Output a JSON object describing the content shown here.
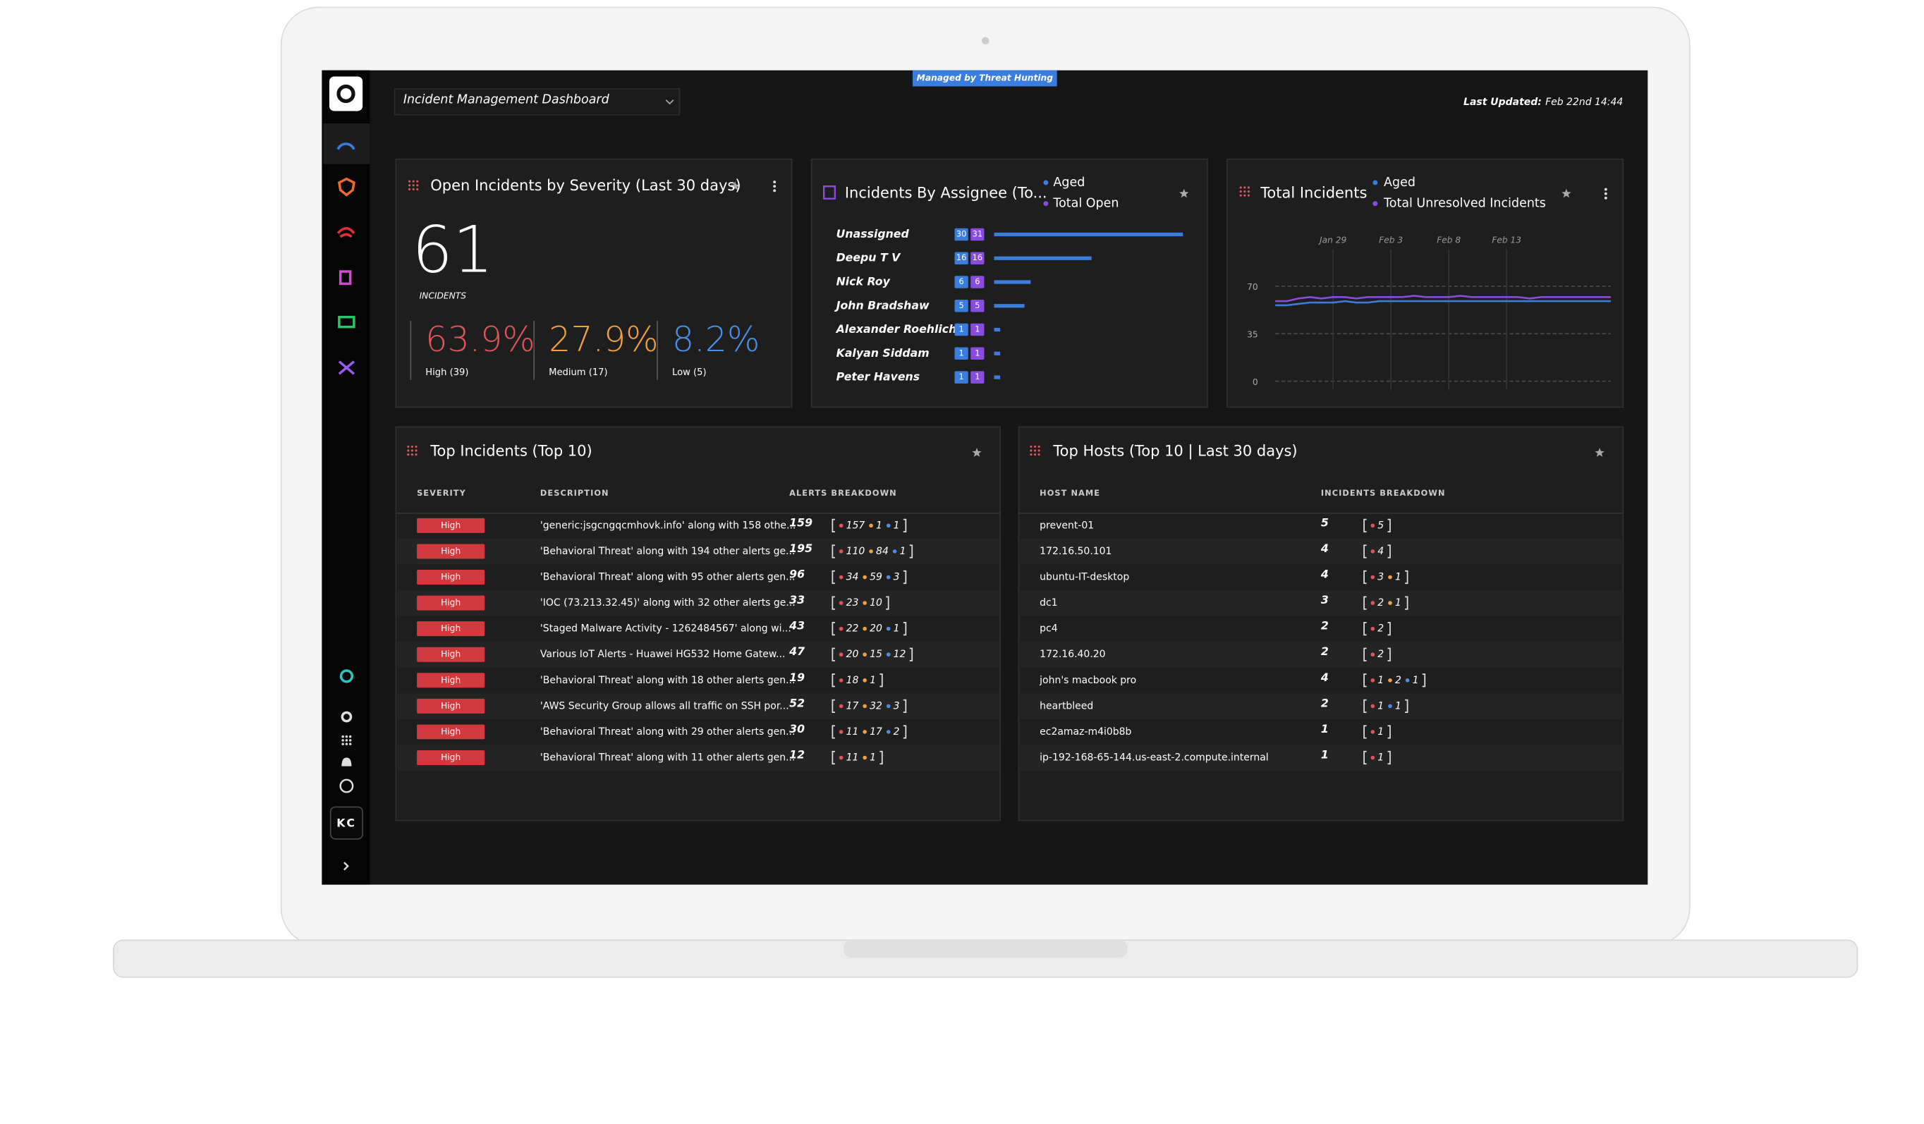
{
  "header": {
    "badge": "Managed by Threat Hunting",
    "dashboard": "Incident Management Dashboard",
    "last_updated_label": "Last Updated:",
    "last_updated": "Feb 22nd 14:44"
  },
  "sidebar": {
    "user": "KC"
  },
  "severity": {
    "title": "Open Incidents by Severity (Last 30 days)",
    "total": 61,
    "total_label": "INCIDENTS",
    "items": [
      {
        "percent": "63.9%",
        "label": "High (39)",
        "color": "#e0555a"
      },
      {
        "percent": "27.9%",
        "label": "Medium (17)",
        "color": "#f0a240"
      },
      {
        "percent": "8.2%",
        "label": "Low (5)",
        "color": "#4a8fe7"
      }
    ]
  },
  "assignees": {
    "title": "Incidents By Assignee (To...",
    "legend": [
      {
        "name": "Aged",
        "color": "#3b7ddd"
      },
      {
        "name": "Total Open",
        "color": "#8a4be0"
      }
    ],
    "rows": [
      {
        "name": "Unassigned",
        "aged": 30,
        "open": 31
      },
      {
        "name": "Deepu T V",
        "aged": 16,
        "open": 16
      },
      {
        "name": "Nick Roy",
        "aged": 6,
        "open": 6
      },
      {
        "name": "John Bradshaw",
        "aged": 5,
        "open": 5
      },
      {
        "name": "Alexander Roehlich",
        "aged": 1,
        "open": 1
      },
      {
        "name": "Kalyan Siddam",
        "aged": 1,
        "open": 1
      },
      {
        "name": "Peter Havens",
        "aged": 1,
        "open": 1
      }
    ]
  },
  "total_incidents": {
    "chart_data": {
      "type": "line",
      "title": "Total Incidents",
      "categories": [
        null,
        null,
        null,
        null,
        null,
        "Jan 29",
        null,
        null,
        null,
        null,
        "Feb 3",
        null,
        null,
        null,
        null,
        "Feb 8",
        null,
        null,
        null,
        null,
        "Feb 13",
        null,
        null,
        null,
        null,
        null,
        null,
        null,
        null,
        null
      ],
      "series": [
        {
          "name": "Aged",
          "color": "#3b7ddd",
          "values": [
            56,
            56,
            57,
            58,
            58,
            58,
            59,
            58,
            58,
            59,
            59,
            59,
            59,
            59,
            59,
            59,
            59,
            59,
            59,
            59,
            59,
            59,
            59,
            59,
            59,
            59,
            59,
            59,
            59,
            59
          ]
        },
        {
          "name": "Total Unresolved Incidents",
          "color": "#8a4be0",
          "values": [
            59,
            59,
            61,
            62,
            61,
            62,
            62,
            61,
            62,
            62,
            62,
            62,
            63,
            62,
            62,
            62,
            63,
            62,
            62,
            62,
            62,
            62,
            61,
            62,
            62,
            62,
            62,
            62,
            62,
            62
          ]
        }
      ],
      "ylim": [
        0,
        70
      ],
      "yticks": [
        0,
        35,
        70
      ],
      "grid": true
    }
  },
  "top_incidents": {
    "title": "Top Incidents (Top 10)",
    "columns": [
      "SEVERITY",
      "DESCRIPTION",
      "ALERTS BREAKDOWN"
    ],
    "rows": [
      {
        "severity": "High",
        "description": "'generic:jsgcngqcmhovk.info' along with 158 othe...",
        "total": 159,
        "breakdown": [
          {
            "value": 157,
            "color": "#e0555a"
          },
          {
            "value": 1,
            "color": "#f0a240"
          },
          {
            "value": 1,
            "color": "#4a8fe7"
          }
        ]
      },
      {
        "severity": "High",
        "description": "'Behavioral Threat' along with 194 other alerts ge...",
        "total": 195,
        "breakdown": [
          {
            "value": 110,
            "color": "#e0555a"
          },
          {
            "value": 84,
            "color": "#f0a240"
          },
          {
            "value": 1,
            "color": "#4a8fe7"
          }
        ]
      },
      {
        "severity": "High",
        "description": "'Behavioral Threat' along with 95 other alerts gen...",
        "total": 96,
        "breakdown": [
          {
            "value": 34,
            "color": "#e0555a"
          },
          {
            "value": 59,
            "color": "#f0a240"
          },
          {
            "value": 3,
            "color": "#4a8fe7"
          }
        ]
      },
      {
        "severity": "High",
        "description": "'IOC (73.213.32.45)' along with 32 other alerts ge...",
        "total": 33,
        "breakdown": [
          {
            "value": 23,
            "color": "#e0555a"
          },
          {
            "value": 10,
            "color": "#f0a240"
          }
        ]
      },
      {
        "severity": "High",
        "description": "'Staged Malware Activity - 1262484567' along wi...",
        "total": 43,
        "breakdown": [
          {
            "value": 22,
            "color": "#e0555a"
          },
          {
            "value": 20,
            "color": "#f0a240"
          },
          {
            "value": 1,
            "color": "#4a8fe7"
          }
        ]
      },
      {
        "severity": "High",
        "description": "Various IoT Alerts - Huawei HG532 Home Gatew...",
        "total": 47,
        "breakdown": [
          {
            "value": 20,
            "color": "#e0555a"
          },
          {
            "value": 15,
            "color": "#f0a240"
          },
          {
            "value": 12,
            "color": "#4a8fe7"
          }
        ]
      },
      {
        "severity": "High",
        "description": "'Behavioral Threat' along with 18 other alerts gen...",
        "total": 19,
        "breakdown": [
          {
            "value": 18,
            "color": "#e0555a"
          },
          {
            "value": 1,
            "color": "#f0a240"
          }
        ]
      },
      {
        "severity": "High",
        "description": "'AWS Security Group allows all traffic on SSH por...",
        "total": 52,
        "breakdown": [
          {
            "value": 17,
            "color": "#e0555a"
          },
          {
            "value": 32,
            "color": "#f0a240"
          },
          {
            "value": 3,
            "color": "#4a8fe7"
          }
        ]
      },
      {
        "severity": "High",
        "description": "'Behavioral Threat' along with 29 other alerts gen...",
        "total": 30,
        "breakdown": [
          {
            "value": 11,
            "color": "#e0555a"
          },
          {
            "value": 17,
            "color": "#f0a240"
          },
          {
            "value": 2,
            "color": "#4a8fe7"
          }
        ]
      },
      {
        "severity": "High",
        "description": "'Behavioral Threat' along with 11 other alerts gen...",
        "total": 12,
        "breakdown": [
          {
            "value": 11,
            "color": "#e0555a"
          },
          {
            "value": 1,
            "color": "#f0a240"
          }
        ]
      }
    ]
  },
  "top_hosts": {
    "title": "Top Hosts (Top 10 | Last 30 days)",
    "columns": [
      "HOST NAME",
      "INCIDENTS BREAKDOWN"
    ],
    "rows": [
      {
        "host": "prevent-01",
        "total": 5,
        "breakdown": [
          {
            "value": 5,
            "color": "#e0555a"
          }
        ]
      },
      {
        "host": "172.16.50.101",
        "total": 4,
        "breakdown": [
          {
            "value": 4,
            "color": "#e0555a"
          }
        ]
      },
      {
        "host": "ubuntu-IT-desktop",
        "total": 4,
        "breakdown": [
          {
            "value": 3,
            "color": "#e0555a"
          },
          {
            "value": 1,
            "color": "#f0a240"
          }
        ]
      },
      {
        "host": "dc1",
        "total": 3,
        "breakdown": [
          {
            "value": 2,
            "color": "#e0555a"
          },
          {
            "value": 1,
            "color": "#f0a240"
          }
        ]
      },
      {
        "host": "pc4",
        "total": 2,
        "breakdown": [
          {
            "value": 2,
            "color": "#e0555a"
          }
        ]
      },
      {
        "host": "172.16.40.20",
        "total": 2,
        "breakdown": [
          {
            "value": 2,
            "color": "#e0555a"
          }
        ]
      },
      {
        "host": "john's macbook pro",
        "total": 4,
        "breakdown": [
          {
            "value": 1,
            "color": "#e0555a"
          },
          {
            "value": 2,
            "color": "#f0a240"
          },
          {
            "value": 1,
            "color": "#4a8fe7"
          }
        ]
      },
      {
        "host": "heartbleed",
        "total": 2,
        "breakdown": [
          {
            "value": 1,
            "color": "#e0555a"
          },
          {
            "value": 1,
            "color": "#4a8fe7"
          }
        ]
      },
      {
        "host": "ec2amaz-m4i0b8b",
        "total": 1,
        "breakdown": [
          {
            "value": 1,
            "color": "#e0555a"
          }
        ]
      },
      {
        "host": "ip-192-168-65-144.us-east-2.compute.internal",
        "total": 1,
        "breakdown": [
          {
            "value": 1,
            "color": "#e0555a"
          }
        ]
      }
    ]
  }
}
